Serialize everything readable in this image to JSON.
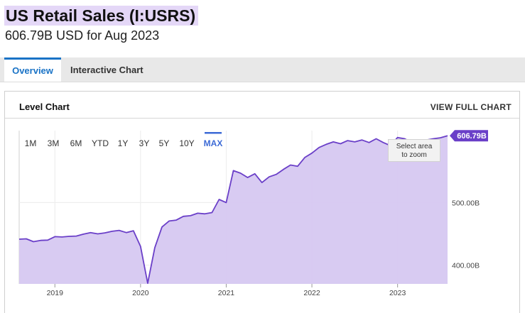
{
  "header": {
    "title": "US Retail Sales (I:USRS)",
    "subtitle": "606.79B USD for Aug 2023"
  },
  "tabs": [
    {
      "label": "Overview",
      "active": true
    },
    {
      "label": "Interactive Chart",
      "active": false
    }
  ],
  "panel": {
    "title": "Level Chart",
    "view_full_label": "VIEW FULL CHART"
  },
  "range_buttons": [
    {
      "label": "1M",
      "active": false
    },
    {
      "label": "3M",
      "active": false
    },
    {
      "label": "6M",
      "active": false
    },
    {
      "label": "YTD",
      "active": false
    },
    {
      "label": "1Y",
      "active": false
    },
    {
      "label": "3Y",
      "active": false
    },
    {
      "label": "5Y",
      "active": false
    },
    {
      "label": "10Y",
      "active": false
    },
    {
      "label": "MAX",
      "active": true
    }
  ],
  "zoom_hint": {
    "line1": "Select area",
    "line2": "to zoom"
  },
  "colors": {
    "accent": "#1a73c6",
    "series_line": "#6a3fc8",
    "series_fill": "#d6c8f1",
    "current_badge": "#6a3fc8",
    "active_range": "#3d6bd6"
  },
  "chart_data": {
    "type": "area",
    "title": "",
    "xlabel": "",
    "ylabel": "",
    "x_tick_labels": [
      "2019",
      "2020",
      "2021",
      "2022",
      "2023"
    ],
    "y_tick_labels": [
      "400.00B",
      "500.00B"
    ],
    "current_value_label": "606.79B",
    "ylim": [
      370,
      615
    ],
    "grid": true,
    "series": [
      {
        "x": [
          "2018-08",
          "2018-09",
          "2018-10",
          "2018-11",
          "2018-12",
          "2019-01",
          "2019-02",
          "2019-03",
          "2019-04",
          "2019-05",
          "2019-06",
          "2019-07",
          "2019-08",
          "2019-09",
          "2019-10",
          "2019-11",
          "2019-12",
          "2020-01",
          "2020-02",
          "2020-03",
          "2020-04",
          "2020-05",
          "2020-06",
          "2020-07",
          "2020-08",
          "2020-09",
          "2020-10",
          "2020-11",
          "2020-12",
          "2021-01",
          "2021-02",
          "2021-03",
          "2021-04",
          "2021-05",
          "2021-06",
          "2021-07",
          "2021-08",
          "2021-09",
          "2021-10",
          "2021-11",
          "2021-12",
          "2022-01",
          "2022-02",
          "2022-03",
          "2022-04",
          "2022-05",
          "2022-06",
          "2022-07",
          "2022-08",
          "2022-09",
          "2022-10",
          "2022-11",
          "2022-12",
          "2023-01",
          "2023-02",
          "2023-03",
          "2023-04",
          "2023-05",
          "2023-06",
          "2023-07",
          "2023-08"
        ],
        "values": [
          441.5,
          442.0,
          437.5,
          439.5,
          440.0,
          445.5,
          445.0,
          446.0,
          446.5,
          449.5,
          452.0,
          450.0,
          451.5,
          454.0,
          455.5,
          452.0,
          455.0,
          430.0,
          371.0,
          428.0,
          461.0,
          470.5,
          472.0,
          478.0,
          479.0,
          483.0,
          482.0,
          484.0,
          505.0,
          500.0,
          551.0,
          547.0,
          540.0,
          546.0,
          532.0,
          541.0,
          545.0,
          553.0,
          560.0,
          558.0,
          572.0,
          579.0,
          588.0,
          593.0,
          597.0,
          594.0,
          599.0,
          597.0,
          600.0,
          596.0,
          602.0,
          596.0,
          591.0,
          604.0,
          602.0,
          596.0,
          598.0,
          600.0,
          602.0,
          603.5,
          606.79
        ]
      }
    ]
  }
}
